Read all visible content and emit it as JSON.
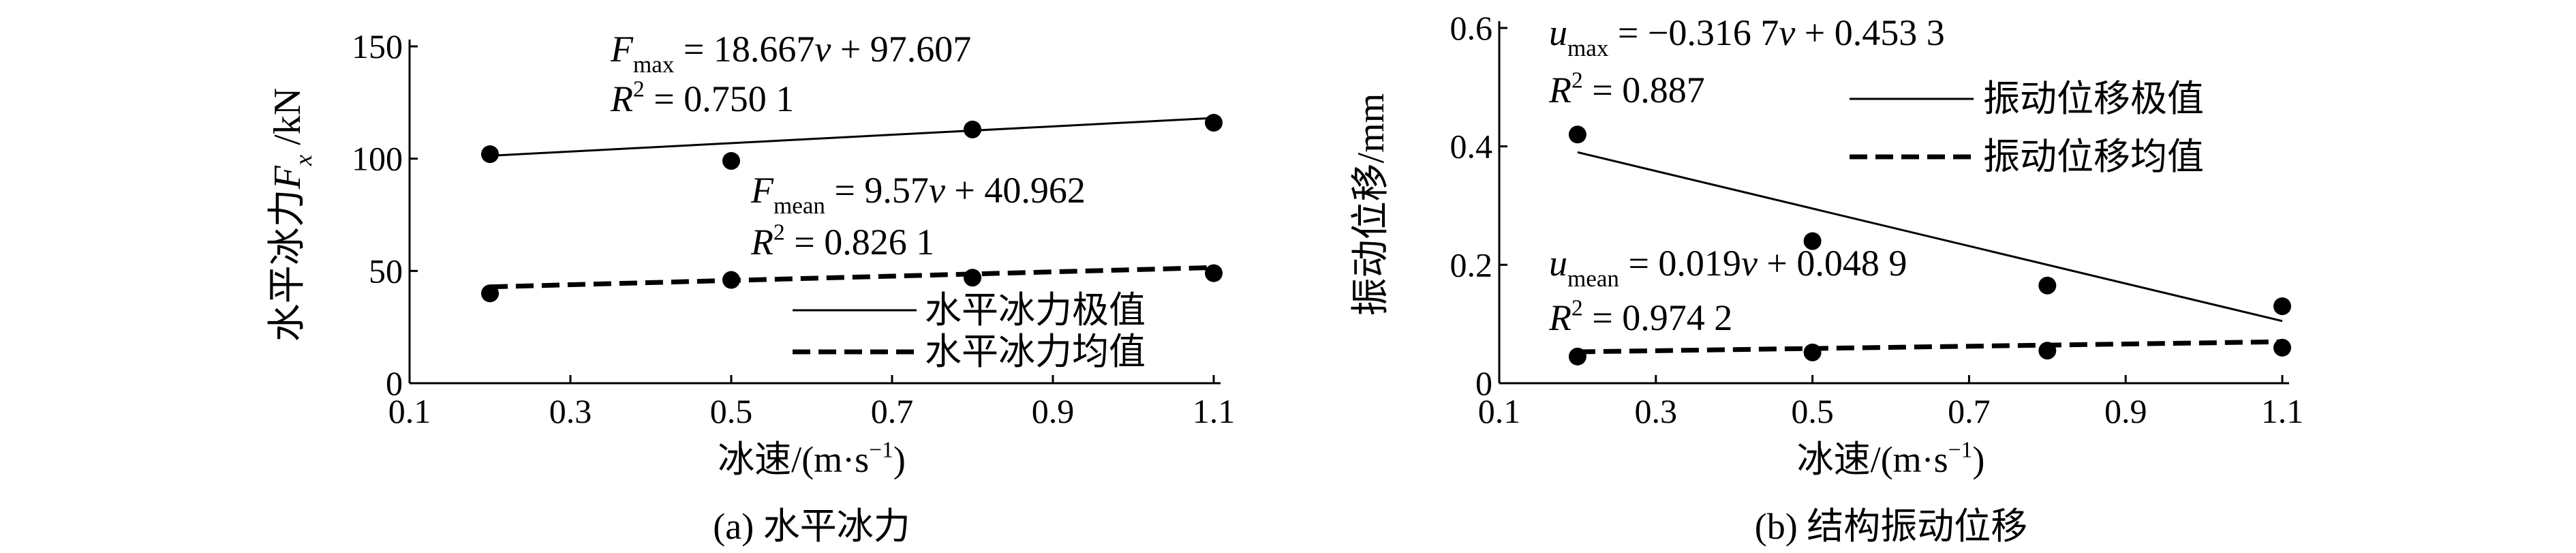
{
  "chart_data": [
    {
      "type": "scatter",
      "caption": "(a) 水平冰力",
      "x_label": [
        {
          "t": "冰速/(m·s"
        },
        {
          "t": "−1",
          "s": "sup"
        },
        {
          "t": ")"
        }
      ],
      "y_label": [
        {
          "t": "水平冰力"
        },
        {
          "t": "F",
          "s": "i"
        },
        {
          "t": "x",
          "s": "subi"
        },
        {
          "t": " /kN"
        }
      ],
      "x": [
        0.2,
        0.5,
        0.8,
        1.1
      ],
      "fit_x": [
        0.2,
        1.1
      ],
      "xlim": [
        0.1,
        1.1
      ],
      "xticks": [
        0.1,
        0.3,
        0.5,
        0.7,
        0.9,
        1.1
      ],
      "ylim": [
        0,
        150
      ],
      "yticks": [
        0,
        50,
        100,
        150
      ],
      "series": [
        {
          "name": "水平冰力极值",
          "color": "#000000",
          "dash": false,
          "values": [
            102,
            99,
            113,
            116
          ],
          "fit": [
            101.3,
            118.1
          ]
        },
        {
          "name": "水平冰力均值",
          "color": "#000000",
          "dash": true,
          "values": [
            40,
            46,
            47,
            49
          ],
          "fit": [
            42.9,
            51.5
          ]
        }
      ],
      "annotations": [
        [
          {
            "t": "F",
            "s": "i"
          },
          {
            "t": "max",
            "s": "sub"
          },
          {
            "t": " = 18.667"
          },
          {
            "t": "v",
            "s": "i"
          },
          {
            "t": " + 97.607"
          }
        ],
        [
          {
            "t": "R",
            "s": "i"
          },
          {
            "t": "2",
            "s": "sup"
          },
          {
            "t": " = 0.750 1"
          }
        ],
        [
          {
            "t": "F",
            "s": "i"
          },
          {
            "t": "mean",
            "s": "sub"
          },
          {
            "t": " = 9.57"
          },
          {
            "t": "v",
            "s": "i"
          },
          {
            "t": " + 40.962"
          }
        ],
        [
          {
            "t": "R",
            "s": "i"
          },
          {
            "t": "2",
            "s": "sup"
          },
          {
            "t": " = 0.826 1"
          }
        ]
      ]
    },
    {
      "type": "scatter",
      "caption": "(b) 结构振动位移",
      "x_label": [
        {
          "t": "冰速/(m·s"
        },
        {
          "t": "−1",
          "s": "sup"
        },
        {
          "t": ")"
        }
      ],
      "y_label": [
        {
          "t": "振动位移/mm"
        }
      ],
      "x": [
        0.2,
        0.5,
        0.8,
        1.1
      ],
      "fit_x": [
        0.2,
        1.1
      ],
      "xlim": [
        0.1,
        1.1
      ],
      "xticks": [
        0.1,
        0.3,
        0.5,
        0.7,
        0.9,
        1.1
      ],
      "ylim": [
        0,
        0.6
      ],
      "yticks": [
        0,
        0.2,
        0.4,
        0.6
      ],
      "series": [
        {
          "name": "振动位移极值",
          "color": "#000000",
          "dash": false,
          "values": [
            0.42,
            0.24,
            0.165,
            0.13
          ],
          "fit": [
            0.39,
            0.105
          ]
        },
        {
          "name": "振动位移均值",
          "color": "#000000",
          "dash": true,
          "values": [
            0.045,
            0.052,
            0.055,
            0.06
          ],
          "fit": [
            0.053,
            0.07
          ]
        }
      ],
      "annotations": [
        [
          {
            "t": "u",
            "s": "i"
          },
          {
            "t": "max",
            "s": "sub"
          },
          {
            "t": " = −0.316 7"
          },
          {
            "t": "v",
            "s": "i"
          },
          {
            "t": " + 0.453 3"
          }
        ],
        [
          {
            "t": "R",
            "s": "i"
          },
          {
            "t": "2",
            "s": "sup"
          },
          {
            "t": " = 0.887"
          }
        ],
        [
          {
            "t": "u",
            "s": "i"
          },
          {
            "t": "mean",
            "s": "sub"
          },
          {
            "t": " = 0.019"
          },
          {
            "t": "v",
            "s": "i"
          },
          {
            "t": " + 0.048 9"
          }
        ],
        [
          {
            "t": "R",
            "s": "i"
          },
          {
            "t": "2",
            "s": "sup"
          },
          {
            "t": " = 0.974 2"
          }
        ]
      ]
    }
  ]
}
